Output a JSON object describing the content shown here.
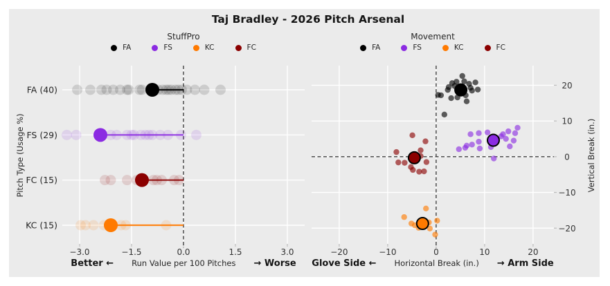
{
  "title": "Taj Bradley - 2026 Pitch Arsenal",
  "figure_bg": "#EBEBEB",
  "palette": {
    "FA": "#000000",
    "FS": "#8B2BE2",
    "KC": "#FF7A00",
    "FC": "#8B0000"
  },
  "grid_color": "#FFFFFF",
  "zero_line_color": "#3F3F3F",
  "legend_pitches": [
    "FA",
    "FS",
    "KC",
    "FC"
  ],
  "chart_data": [
    {
      "type": "scatter",
      "name": "stuffpro",
      "title": "StuffPro",
      "xlabel": "Run Value per 100 Pitches",
      "xlabel_left": "Better ←",
      "xlabel_right": "→ Worse",
      "ylabel": "Pitch Type (Usage %)",
      "xlim": [
        -3.5,
        3.5
      ],
      "xticks": [
        -3.0,
        -1.5,
        0.0,
        1.5,
        3.0
      ],
      "xtick_labels": [
        "−3.0",
        "−1.5",
        "0.0",
        "1.5",
        "3.0"
      ],
      "zero_reference": 0.0,
      "rows": [
        {
          "pitch": "FA",
          "label": "FA (40)",
          "usage_pct": 40,
          "mean": -0.9,
          "points": [
            -3.07,
            -2.69,
            -2.37,
            -2.22,
            -2.03,
            -1.83,
            -1.63,
            -1.58,
            -1.27,
            -1.2,
            -0.95,
            -0.73,
            -0.6,
            -0.5,
            -0.43,
            -0.35,
            -0.23,
            -0.15,
            -0.05,
            0.1,
            0.33,
            0.6,
            1.07
          ]
        },
        {
          "pitch": "FS",
          "label": "FS (29)",
          "usage_pct": 29,
          "mean": -2.4,
          "points": [
            -3.37,
            -3.1,
            -2.1,
            -1.93,
            -1.63,
            -1.5,
            -1.43,
            -1.23,
            -1.1,
            -1.0,
            -0.9,
            -0.67,
            -0.45,
            -0.07,
            0.37
          ]
        },
        {
          "pitch": "FC",
          "label": "FC (15)",
          "usage_pct": 15,
          "mean": -1.2,
          "points": [
            -2.27,
            -2.1,
            -1.63,
            -1.35,
            -0.87,
            -0.77,
            -0.63,
            -0.27,
            -0.13
          ]
        },
        {
          "pitch": "KC",
          "label": "KC (15)",
          "usage_pct": 15,
          "mean": -2.1,
          "points": [
            -2.97,
            -2.83,
            -2.6,
            -2.3,
            -1.8,
            -1.67,
            -0.5
          ]
        }
      ]
    },
    {
      "type": "scatter",
      "name": "movement",
      "title": "Movement",
      "xlabel": "Horizontal Break (in.)",
      "xlabel_left": "Glove Side ←",
      "xlabel_right": "→ Arm Side",
      "ylabel": "Vertical Break (in.)",
      "xlim": [
        -25.7,
        24.3
      ],
      "ylim": [
        -24.4,
        25.5
      ],
      "xticks": [
        -20,
        -10,
        0,
        10,
        20
      ],
      "xtick_labels": [
        "−20",
        "−10",
        "0",
        "10",
        "20"
      ],
      "yticks": [
        20,
        10,
        0,
        -10,
        -20
      ],
      "ytick_labels": [
        "20",
        "10",
        "0",
        "−10",
        "−20"
      ],
      "series": [
        {
          "pitch": "FA",
          "mean": [
            5.1,
            18.7
          ],
          "points": [
            [
              0.4,
              17.3
            ],
            [
              1.0,
              17.2
            ],
            [
              1.7,
              11.8
            ],
            [
              2.4,
              18.7
            ],
            [
              2.6,
              19.5
            ],
            [
              3.1,
              16.4
            ],
            [
              3.3,
              20.6
            ],
            [
              3.8,
              19.8
            ],
            [
              4.2,
              21.0
            ],
            [
              4.4,
              16.6
            ],
            [
              5.4,
              22.6
            ],
            [
              5.8,
              21.1
            ],
            [
              6.1,
              17.2
            ],
            [
              6.3,
              15.5
            ],
            [
              6.8,
              20.4
            ],
            [
              7.1,
              19.3
            ],
            [
              7.4,
              18.5
            ],
            [
              8.1,
              20.8
            ],
            [
              8.6,
              18.8
            ]
          ]
        },
        {
          "pitch": "FS",
          "mean": [
            11.8,
            4.6
          ],
          "points": [
            [
              4.7,
              2.1
            ],
            [
              6.0,
              2.5
            ],
            [
              6.3,
              3.1
            ],
            [
              7.1,
              6.3
            ],
            [
              7.4,
              3.4
            ],
            [
              8.8,
              6.6
            ],
            [
              8.8,
              4.2
            ],
            [
              9.0,
              2.3
            ],
            [
              10.6,
              6.8
            ],
            [
              11.3,
              2.7
            ],
            [
              11.9,
              -0.5
            ],
            [
              13.4,
              5.7
            ],
            [
              13.8,
              6.3
            ],
            [
              14.4,
              5.0
            ],
            [
              14.9,
              7.1
            ],
            [
              15.2,
              2.9
            ],
            [
              16.0,
              4.5
            ],
            [
              16.3,
              6.6
            ],
            [
              16.8,
              8.1
            ]
          ]
        },
        {
          "pitch": "FC",
          "mean": [
            -4.5,
            -0.3
          ],
          "points": [
            [
              -4.9,
              6.0
            ],
            [
              -2.2,
              4.3
            ],
            [
              -3.2,
              1.8
            ],
            [
              -8.2,
              1.3
            ],
            [
              -7.8,
              -1.6
            ],
            [
              -6.5,
              -1.7
            ],
            [
              -5.2,
              -2.9
            ],
            [
              -4.8,
              -3.7
            ],
            [
              -3.5,
              -4.2
            ],
            [
              -2.5,
              -4.1
            ],
            [
              -2.0,
              -1.5
            ],
            [
              -3.2,
              0.2
            ]
          ]
        },
        {
          "pitch": "KC",
          "mean": [
            -2.8,
            -18.7
          ],
          "points": [
            [
              -2.1,
              -14.5
            ],
            [
              -6.6,
              -16.9
            ],
            [
              -5.1,
              -18.7
            ],
            [
              -4.4,
              -19.2
            ],
            [
              -3.6,
              -19.9
            ],
            [
              -1.5,
              -18.4
            ],
            [
              -1.3,
              -20.1
            ],
            [
              0.2,
              -17.9
            ],
            [
              -0.2,
              -21.8
            ]
          ]
        }
      ]
    }
  ]
}
